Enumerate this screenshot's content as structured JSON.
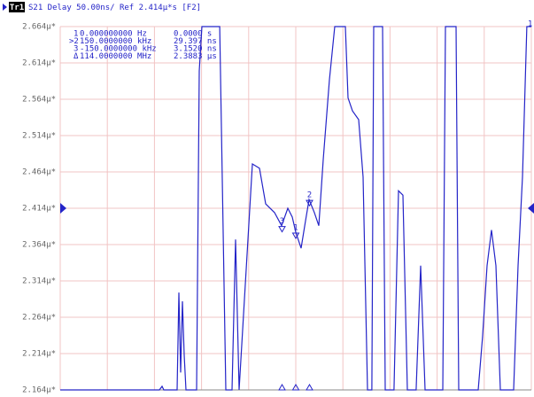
{
  "chart_data": {
    "type": "line",
    "header_trace": "Tr1",
    "title": "S21 Delay 50.00ns/ Ref 2.414µ*s [F2]",
    "channel_label": "1",
    "ref_level": 2.414,
    "xlim": [
      -2575,
      2575
    ],
    "ylim": [
      2.164,
      2.664
    ],
    "yticks": [
      {
        "value": 2.664,
        "label": "2.664µ*"
      },
      {
        "value": 2.614,
        "label": "2.614µ*"
      },
      {
        "value": 2.564,
        "label": "2.564µ*"
      },
      {
        "value": 2.514,
        "label": "2.514µ*"
      },
      {
        "value": 2.464,
        "label": "2.464µ*"
      },
      {
        "value": 2.414,
        "label": "2.414µ*"
      },
      {
        "value": 2.364,
        "label": "2.364µ*"
      },
      {
        "value": 2.314,
        "label": "2.314µ*"
      },
      {
        "value": 2.264,
        "label": "2.264µ*"
      },
      {
        "value": 2.214,
        "label": "2.214µ*"
      },
      {
        "value": 2.164,
        "label": "2.164µ*"
      }
    ],
    "grid": true,
    "x": [
      -2575,
      -1491,
      -1462,
      -1442,
      -1297,
      -1278,
      -1258,
      -1239,
      -1220,
      -1200,
      -1084,
      -1055,
      -1026,
      -832,
      -765,
      -697,
      -658,
      -620,
      -474,
      -397,
      -329,
      -232,
      -155,
      -87,
      -39,
      0,
      58,
      106,
      145,
      203,
      252,
      300,
      368,
      426,
      542,
      571,
      620,
      687,
      736,
      784,
      832,
      852,
      949,
      978,
      1074,
      1123,
      1171,
      1220,
      1316,
      1365,
      1413,
      1607,
      1636,
      1752,
      1781,
      1994,
      2042,
      2091,
      2139,
      2188,
      2236,
      2381,
      2430,
      2478,
      2526,
      2575
    ],
    "series": [
      {
        "color": "#2424c8",
        "values": [
          2.164,
          2.164,
          2.169,
          2.164,
          2.164,
          2.298,
          2.188,
          2.286,
          2.212,
          2.164,
          2.164,
          2.603,
          2.664,
          2.664,
          2.164,
          2.164,
          2.371,
          2.164,
          2.475,
          2.469,
          2.42,
          2.408,
          2.39,
          2.414,
          2.402,
          2.381,
          2.359,
          2.396,
          2.426,
          2.408,
          2.39,
          2.481,
          2.591,
          2.664,
          2.664,
          2.566,
          2.548,
          2.536,
          2.457,
          2.164,
          2.164,
          2.664,
          2.664,
          2.164,
          2.164,
          2.438,
          2.432,
          2.164,
          2.164,
          2.335,
          2.164,
          2.164,
          2.664,
          2.664,
          2.164,
          2.164,
          2.237,
          2.335,
          2.384,
          2.335,
          2.164,
          2.164,
          2.335,
          2.457,
          2.664,
          2.664
        ]
      }
    ],
    "markers": [
      {
        "label": "1",
        "x": 0,
        "y": 2.381
      },
      {
        "label": "2",
        "x": 150,
        "y": 2.426
      },
      {
        "label": "3",
        "x": -150,
        "y": 2.39
      }
    ],
    "marker_table": [
      [
        "1",
        "0.000000000 Hz",
        "0.0000 s"
      ],
      [
        ">2",
        "150.0000000 kHz",
        "29.397 ns"
      ],
      [
        "3",
        "-150.0000000 kHz",
        "3.1520 ns"
      ],
      [
        "Δ",
        "114.0000000 MHz",
        "2.3883 µs"
      ]
    ]
  }
}
